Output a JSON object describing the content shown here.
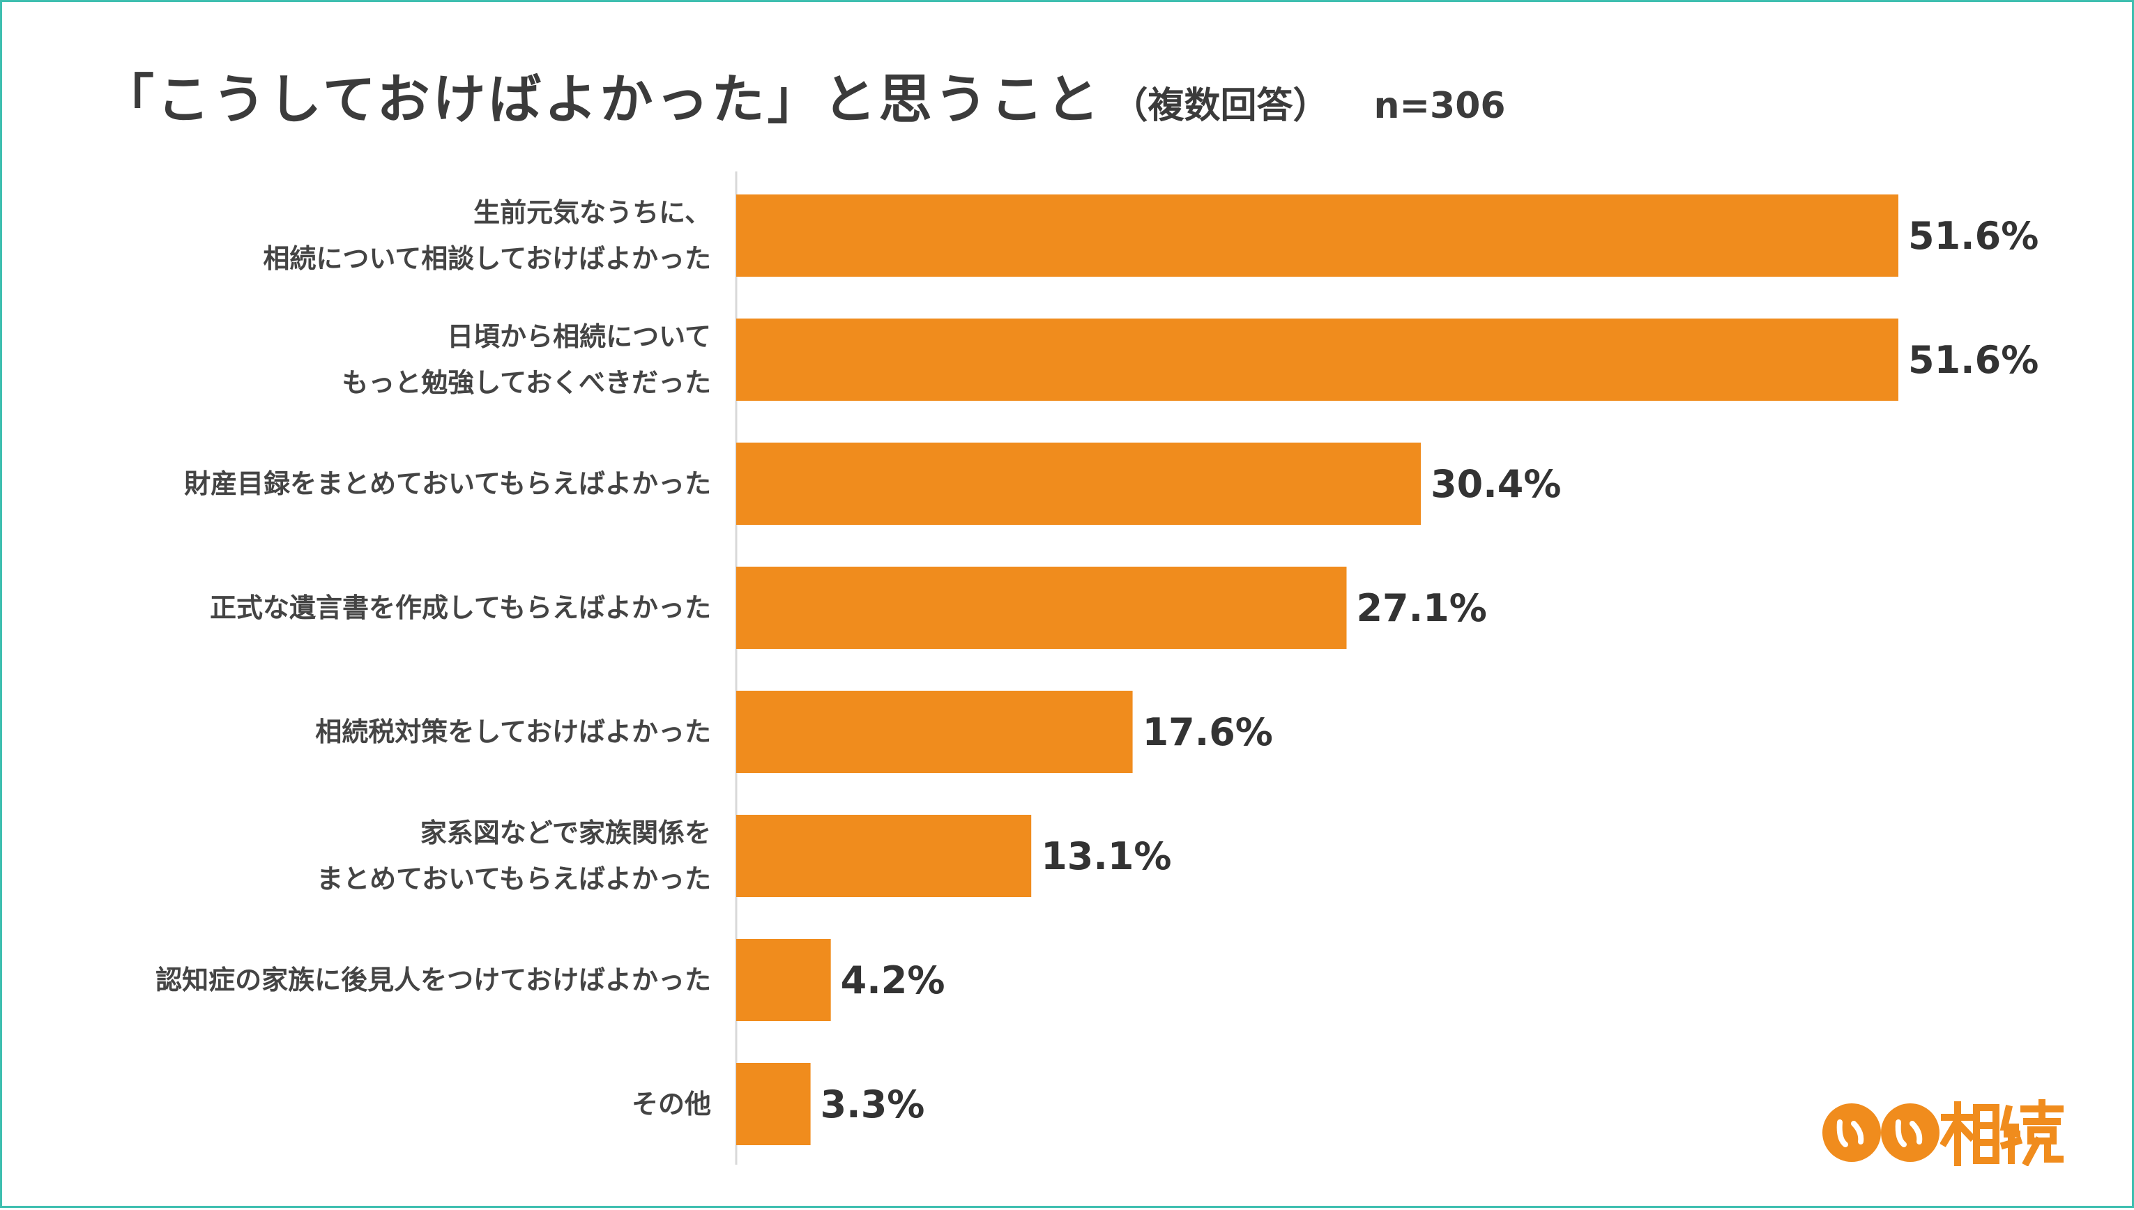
{
  "title": {
    "main": "「こうしておけばよかった」と思うこと",
    "sub": "（複数回答）",
    "n": "n=306"
  },
  "colors": {
    "bar": "#F08C1D",
    "border": "#3FBFB0",
    "text": "#3B3B3B"
  },
  "logo": {
    "text": "いい相続",
    "icon": "ii-circle-logo-icon"
  },
  "chart_data": {
    "type": "bar",
    "orientation": "horizontal",
    "title": "「こうしておけばよかった」と思うこと（複数回答）",
    "xlim": [
      0,
      60
    ],
    "grid": false,
    "value_suffix": "%",
    "categories": [
      [
        "生前元気なうちに、",
        "相続について相談しておけばよかった"
      ],
      [
        "日頃から相続について",
        "もっと勉強しておくべきだった"
      ],
      [
        "財産目録をまとめておいてもらえばよかった"
      ],
      [
        "正式な遺言書を作成してもらえばよかった"
      ],
      [
        "相続税対策をしておけばよかった"
      ],
      [
        "家系図などで家族関係を",
        "まとめておいてもらえばよかった"
      ],
      [
        "認知症の家族に後見人をつけておけばよかった"
      ],
      [
        "その他"
      ]
    ],
    "values": [
      51.6,
      51.6,
      30.4,
      27.1,
      17.6,
      13.1,
      4.2,
      3.3
    ]
  }
}
